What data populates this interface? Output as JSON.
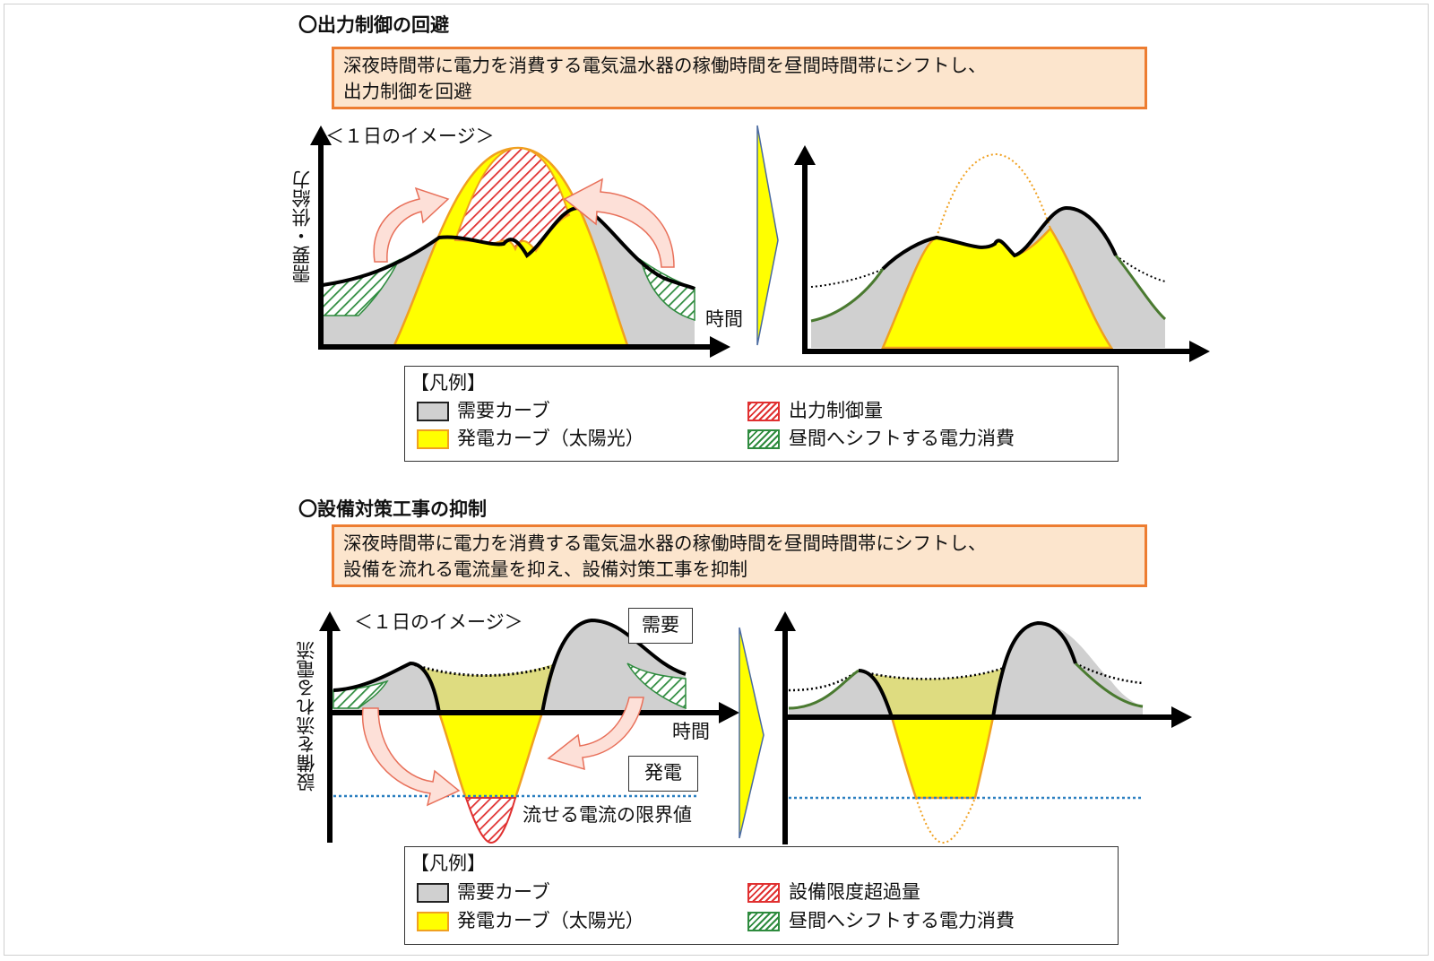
{
  "section1": {
    "title": "〇出力制御の回避",
    "callout_line1": "深夜時間帯に電力を消費する電気温水器の稼働時間を昼間時間帯にシフトし、",
    "callout_line2": "出力制御を回避",
    "image_label": "＜１日のイメージ＞",
    "y_axis_label": "需要・供給力",
    "x_axis_label": "時間",
    "legend": {
      "title": "【凡例】",
      "demand": "需要カーブ",
      "solar": "発電カーブ（太陽光）",
      "excess": "出力制御量",
      "shift": "昼間へシフトする電力消費"
    }
  },
  "section2": {
    "title": "〇設備対策工事の抑制",
    "callout_line1": "深夜時間帯に電力を消費する電気温水器の稼働時間を昼間時間帯にシフトし、",
    "callout_line2": "設備を流れる電流量を抑え、設備対策工事を抑制",
    "image_label": "＜１日のイメージ＞",
    "y_axis_label": "設備を流れる電流",
    "x_axis_label": "時間",
    "demand_box": "需要",
    "generation_box": "発電",
    "limit_label": "流せる電流の限界値",
    "legend": {
      "title": "【凡例】",
      "demand": "需要カーブ",
      "solar": "発電カーブ（太陽光）",
      "excess": "設備限度超過量",
      "shift": "昼間へシフトする電力消費"
    }
  },
  "colors": {
    "demand_fill": "#d0d0d0",
    "solar_fill": "#ffff00",
    "solar_edge": "#f0a020",
    "excess_hatch": "#e03030",
    "shift_hatch": "#2e8b3e",
    "arrow_fill": "#fde0d8",
    "arrow_edge": "#e8705a",
    "callout_fill": "#fce5cd",
    "callout_border": "#ed7d31",
    "limit_line": "#2a7fc0"
  }
}
